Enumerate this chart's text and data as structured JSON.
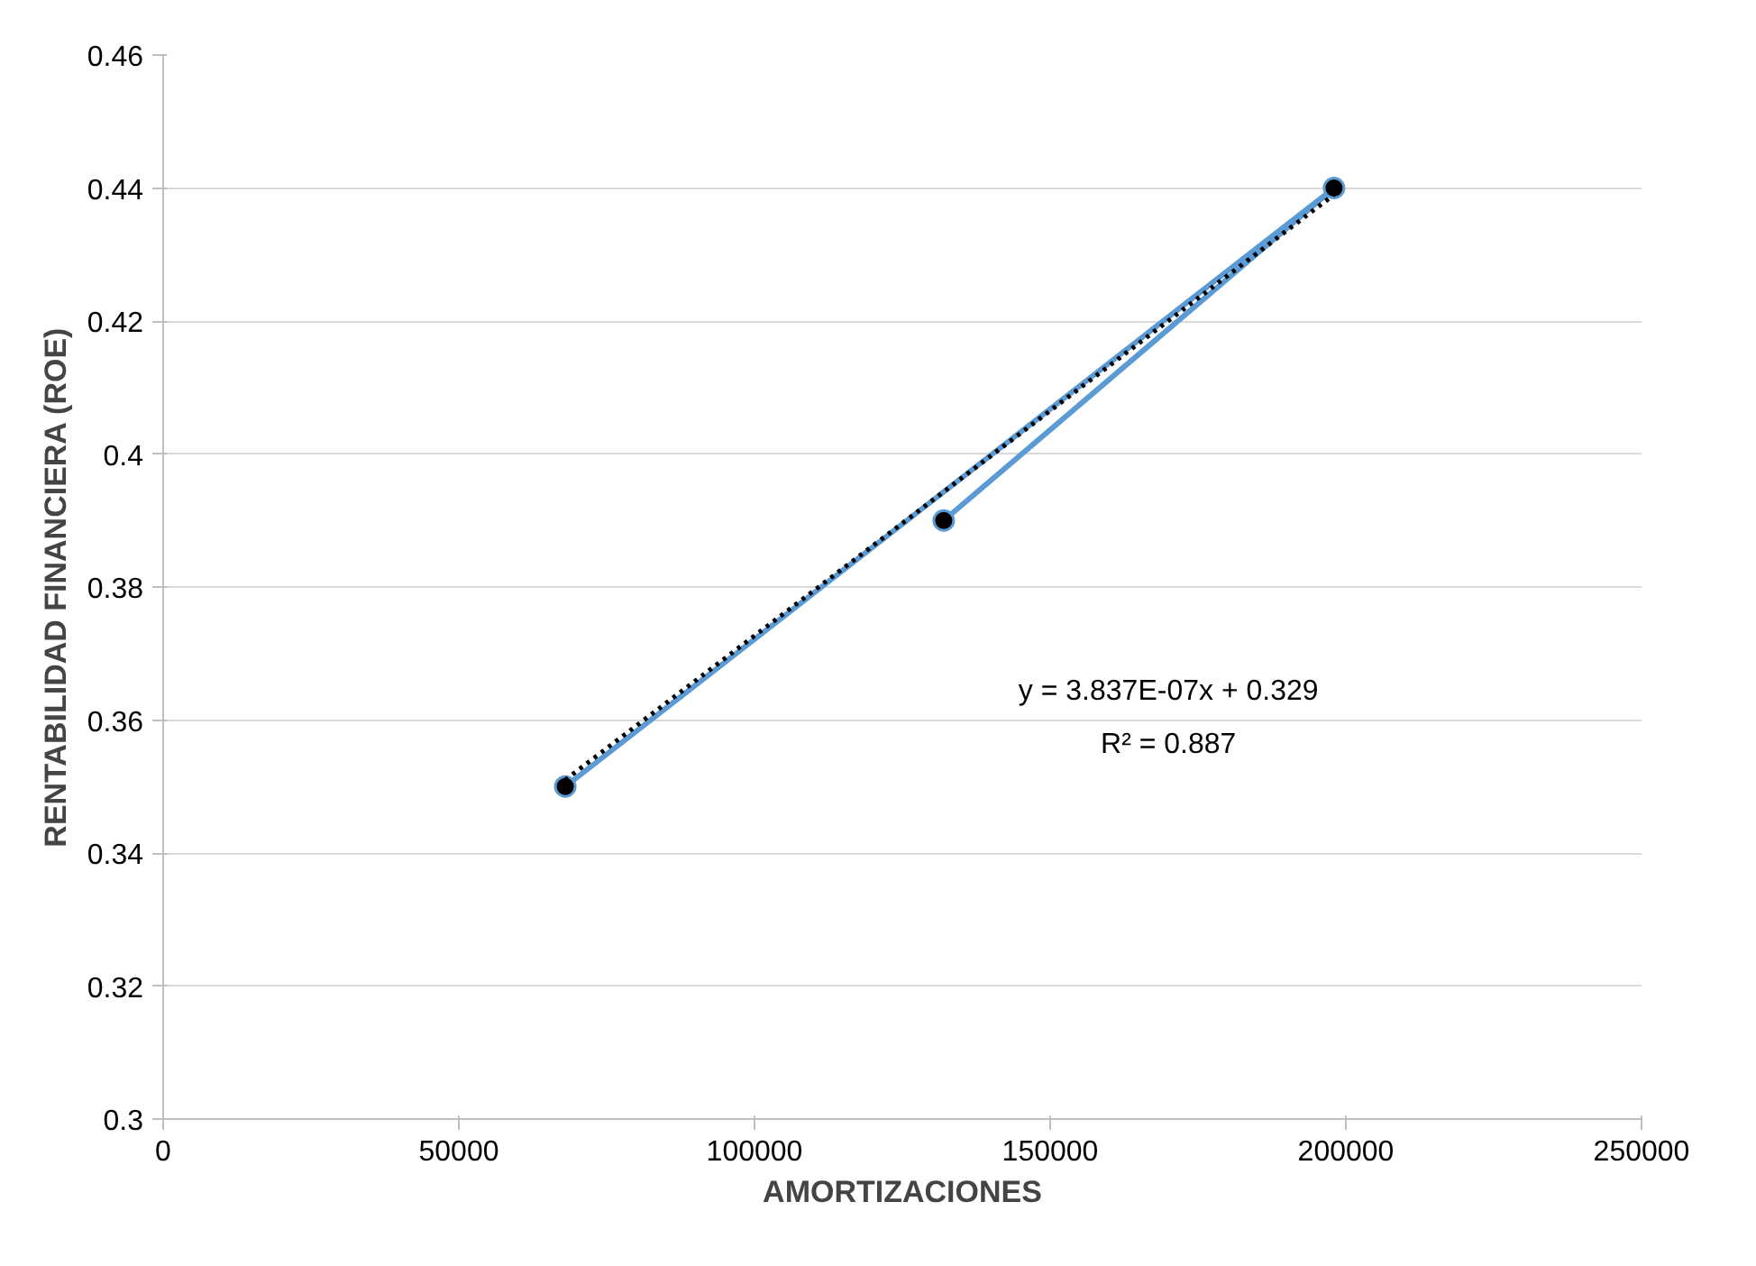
{
  "chart_data": {
    "type": "line",
    "xlabel": "AMORTIZACIONES",
    "ylabel": "RENTABILIDAD FINANCIERA (ROE)",
    "series": [
      {
        "color": "#5b9bd5",
        "x": [
          68000,
          198000,
          132000
        ],
        "values": [
          0.35,
          0.44,
          0.39
        ],
        "marker": "circle",
        "line_style": "solid"
      },
      {
        "color": "#000000",
        "x": [
          68000,
          198000
        ],
        "values": [
          0.351,
          0.439
        ],
        "marker": "none",
        "line_style": "dotted"
      }
    ],
    "annotations": [
      "y = 3.837E-07x + 0.329",
      "R² = 0.887"
    ],
    "xlim": [
      0,
      250000
    ],
    "xticks": [
      0,
      50000,
      100000,
      150000,
      200000,
      250000
    ],
    "ylim": [
      0.3,
      0.46
    ],
    "yticks": [
      {
        "value": 0.3,
        "label": "0.3"
      },
      0.32,
      0.34,
      0.36,
      0.38,
      {
        "value": 0.4,
        "label": "0.4"
      },
      0.42,
      0.44,
      0.46
    ],
    "grid": "y"
  }
}
